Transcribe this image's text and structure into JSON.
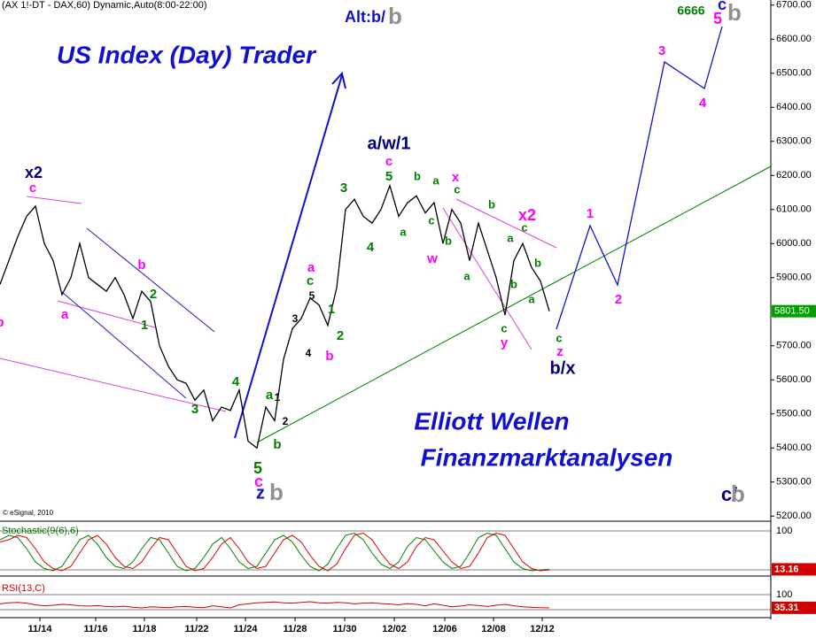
{
  "chart_data": {
    "type": "line",
    "title": "(AX 1!-DT - DAX,60) Dynamic,Auto(8:00-22:00)",
    "copyright": "© eSignal, 2010",
    "xlim": [
      0,
      87
    ],
    "xticks": [
      {
        "value": 4.5,
        "label": "11/14"
      },
      {
        "value": 10.8,
        "label": "11/16"
      },
      {
        "value": 16.3,
        "label": "11/18"
      },
      {
        "value": 22.2,
        "label": "11/22"
      },
      {
        "value": 27.7,
        "label": "11/24"
      },
      {
        "value": 33.3,
        "label": "11/28"
      },
      {
        "value": 38.9,
        "label": "11/30"
      },
      {
        "value": 44.5,
        "label": "12/02"
      },
      {
        "value": 50.2,
        "label": "12/06"
      },
      {
        "value": 55.7,
        "label": "12/08"
      },
      {
        "value": 61.2,
        "label": "12/12"
      }
    ],
    "ylim": [
      5185,
      6715
    ],
    "yticks": [
      {
        "value": 6700,
        "label": "6700.00"
      },
      {
        "value": 6600,
        "label": "6600.00"
      },
      {
        "value": 6500,
        "label": "6500.00"
      },
      {
        "value": 6400,
        "label": "6400.00"
      },
      {
        "value": 6300,
        "label": "6300.00"
      },
      {
        "value": 6200,
        "label": "6200.00"
      },
      {
        "value": 6100,
        "label": "6100.00"
      },
      {
        "value": 6000,
        "label": "6000.00"
      },
      {
        "value": 5900,
        "label": "5900.00"
      },
      {
        "value": 5700,
        "label": "5700.00"
      },
      {
        "value": 5600,
        "label": "5600.00"
      },
      {
        "value": 5500,
        "label": "5500.00"
      },
      {
        "value": 5400,
        "label": "5400.00"
      },
      {
        "value": 5300,
        "label": "5300.00"
      },
      {
        "value": 5200,
        "label": "5200.00"
      }
    ],
    "series": [
      {
        "name": "DAX",
        "color": "#000000",
        "values": [
          5880,
          5950,
          6020,
          6080,
          6110,
          6000,
          5950,
          5850,
          5900,
          6000,
          5900,
          5880,
          5860,
          5900,
          5850,
          5780,
          5860,
          5830,
          5700,
          5640,
          5600,
          5590,
          5540,
          5570,
          5480,
          5520,
          5510,
          5570,
          5420,
          5400,
          5520,
          5480,
          5660,
          5750,
          5780,
          5840,
          5820,
          5760,
          5870,
          6100,
          6130,
          6080,
          6060,
          6100,
          6170,
          6080,
          6120,
          6140,
          6090,
          6120,
          6000,
          6100,
          6060,
          5950,
          6060,
          5980,
          5900,
          5790,
          5950,
          6000,
          5930,
          5890,
          5801.5
        ]
      }
    ],
    "last_price": {
      "value": 5801.5,
      "label": "5801.50"
    },
    "stochastic": {
      "title": "Stochastic(9(6),6)",
      "ylim": [
        0,
        100
      ],
      "yticks": [
        100
      ],
      "series": [
        {
          "name": "%K",
          "color": "#008000",
          "values": [
            80,
            90,
            85,
            60,
            30,
            15,
            10,
            20,
            50,
            80,
            90,
            70,
            40,
            20,
            15,
            30,
            60,
            85,
            80,
            50,
            20,
            10,
            15,
            40,
            70,
            85,
            60,
            30,
            15,
            20,
            50,
            80,
            90,
            75,
            45,
            20,
            10,
            25,
            60,
            90,
            95,
            80,
            50,
            25,
            15,
            30,
            65,
            85,
            80,
            55,
            30,
            15,
            20,
            50,
            85,
            95,
            90,
            60,
            30,
            15,
            10,
            12,
            13.16
          ]
        },
        {
          "name": "%D",
          "color": "#e00000",
          "values": [
            75,
            80,
            90,
            85,
            60,
            30,
            15,
            10,
            20,
            50,
            80,
            90,
            70,
            40,
            20,
            15,
            30,
            60,
            85,
            80,
            50,
            20,
            10,
            15,
            40,
            70,
            85,
            60,
            30,
            15,
            20,
            50,
            80,
            90,
            75,
            45,
            20,
            10,
            25,
            60,
            90,
            95,
            80,
            50,
            25,
            15,
            30,
            65,
            85,
            80,
            55,
            30,
            15,
            20,
            50,
            85,
            95,
            90,
            60,
            30,
            15,
            10,
            12
          ]
        }
      ]
    },
    "rsi": {
      "title": "RSI(13,C)",
      "ylim": [
        0,
        100
      ],
      "yticks": [
        100
      ],
      "series": [
        {
          "name": "RSI",
          "color": "#d00000",
          "values": [
            55,
            60,
            62,
            58,
            50,
            45,
            48,
            52,
            50,
            45,
            44,
            46,
            42,
            40,
            43,
            38,
            35,
            40,
            38,
            36,
            40,
            42,
            38,
            36,
            45,
            40,
            35,
            50,
            55,
            60,
            62,
            64,
            60,
            58,
            62,
            65,
            60,
            58,
            62,
            60,
            55,
            58,
            60,
            56,
            54,
            50,
            56,
            52,
            45,
            55,
            48,
            40,
            44,
            50,
            46,
            42,
            48,
            52,
            45,
            40,
            38,
            36,
            35.31
          ]
        }
      ]
    },
    "annotations": [
      {
        "text": "US Index (Day) Trader",
        "color": "#1010d0"
      },
      {
        "text": "Alt:b/",
        "color": "#1010d0"
      },
      {
        "text": "b",
        "color": "#909090"
      },
      {
        "text": "6666",
        "color": "#008000"
      },
      {
        "text": "c",
        "color": "#1010d0"
      },
      {
        "text": "5",
        "color": "#ff00ff"
      },
      {
        "text": "b",
        "color": "#909090"
      },
      {
        "text": "x2",
        "color": "#000080"
      },
      {
        "text": "c",
        "color": "#ff00ff"
      },
      {
        "text": "a",
        "color": "#ff00ff"
      },
      {
        "text": "b",
        "color": "#ff00ff"
      },
      {
        "text": "1",
        "color": "#008000"
      },
      {
        "text": "2",
        "color": "#008000"
      },
      {
        "text": "3",
        "color": "#008000"
      },
      {
        "text": "4",
        "color": "#008000"
      },
      {
        "text": "a",
        "color": "#008000"
      },
      {
        "text": "1",
        "color": "#000000"
      },
      {
        "text": "2",
        "color": "#000000"
      },
      {
        "text": "b",
        "color": "#008000"
      },
      {
        "text": "5",
        "color": "#008000"
      },
      {
        "text": "c",
        "color": "#ff00ff"
      },
      {
        "text": "z",
        "color": "#1010d0"
      },
      {
        "text": "b",
        "color": "#909090"
      },
      {
        "text": "a",
        "color": "#ff00ff"
      },
      {
        "text": "c",
        "color": "#008000"
      },
      {
        "text": "5",
        "color": "#000000"
      },
      {
        "text": "3",
        "color": "#000000"
      },
      {
        "text": "1",
        "color": "#008000"
      },
      {
        "text": "4",
        "color": "#000000"
      },
      {
        "text": "2",
        "color": "#008000"
      },
      {
        "text": "b",
        "color": "#ff00ff"
      },
      {
        "text": "3",
        "color": "#008000"
      },
      {
        "text": "4",
        "color": "#008000"
      },
      {
        "text": "5",
        "color": "#008000"
      },
      {
        "text": "c",
        "color": "#ff00ff"
      },
      {
        "text": "a/w/1",
        "color": "#000080"
      },
      {
        "text": "a",
        "color": "#008000"
      },
      {
        "text": "b",
        "color": "#008000"
      },
      {
        "text": "a",
        "color": "#008000"
      },
      {
        "text": "c",
        "color": "#008000"
      },
      {
        "text": "b",
        "color": "#008000"
      },
      {
        "text": "w",
        "color": "#ff00ff"
      },
      {
        "text": "x",
        "color": "#ff00ff"
      },
      {
        "text": "c",
        "color": "#008000"
      },
      {
        "text": "a",
        "color": "#008000"
      },
      {
        "text": "b",
        "color": "#008000"
      },
      {
        "text": "a",
        "color": "#008000"
      },
      {
        "text": "c",
        "color": "#008000"
      },
      {
        "text": "x2",
        "color": "#ff00ff"
      },
      {
        "text": "b",
        "color": "#008000"
      },
      {
        "text": "b",
        "color": "#008000"
      },
      {
        "text": "a",
        "color": "#008000"
      },
      {
        "text": "c",
        "color": "#008000"
      },
      {
        "text": "y",
        "color": "#ff00ff"
      },
      {
        "text": "c",
        "color": "#008000"
      },
      {
        "text": "z",
        "color": "#ff00ff"
      },
      {
        "text": "b/x",
        "color": "#000080"
      },
      {
        "text": "1",
        "color": "#ff00ff"
      },
      {
        "text": "2",
        "color": "#ff00ff"
      },
      {
        "text": "3",
        "color": "#ff00ff"
      },
      {
        "text": "4",
        "color": "#ff00ff"
      },
      {
        "text": "Elliott Wellen",
        "color": "#1010d0"
      },
      {
        "text": "Finanzmarktanalysen",
        "color": "#1010d0"
      },
      {
        "text": "c/",
        "color": "#000080"
      },
      {
        "text": "b",
        "color": "#909090"
      },
      {
        "text": "b",
        "color": "#ff00ff"
      }
    ]
  }
}
